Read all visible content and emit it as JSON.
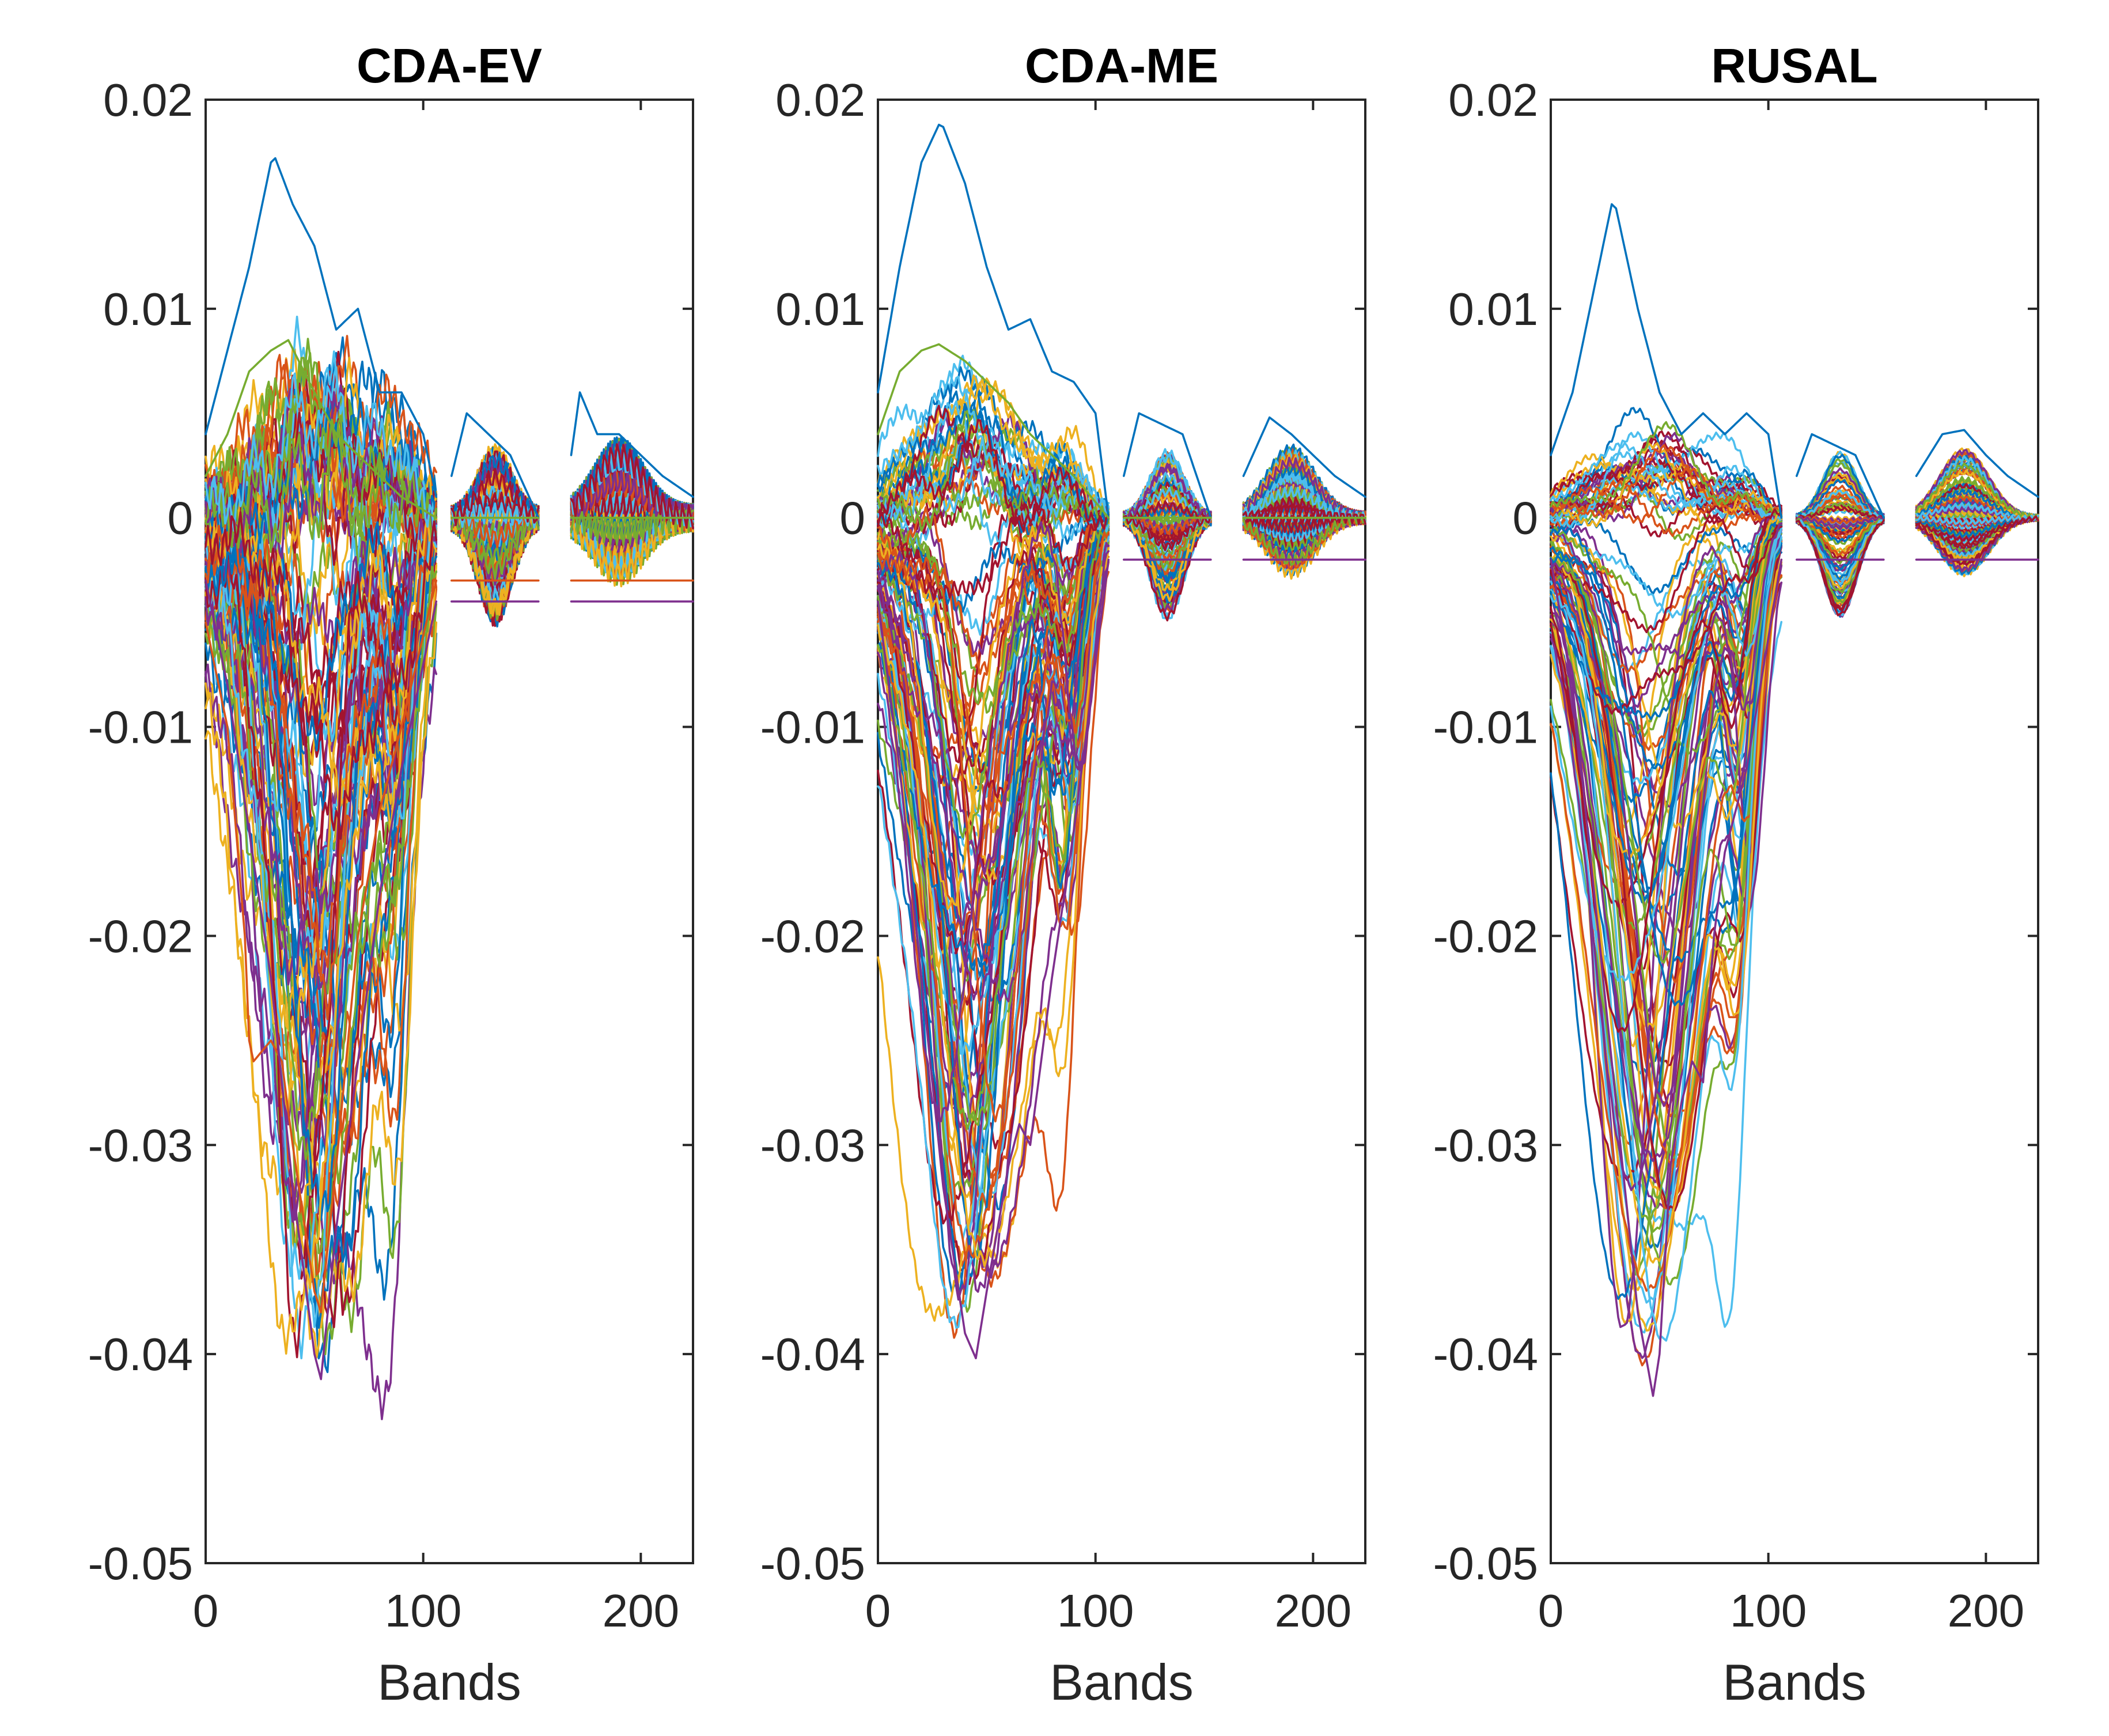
{
  "chart_data": [
    {
      "type": "line",
      "title": "CDA-EV",
      "xlabel": "Bands",
      "ylabel": "",
      "xlim": [
        0,
        224
      ],
      "ylim": [
        -0.05,
        0.02
      ],
      "xticks": [
        0,
        100,
        200
      ],
      "xtick_labels": [
        "0",
        "100",
        "200"
      ],
      "yticks": [
        0.02,
        0.01,
        0,
        -0.01,
        -0.02,
        -0.03,
        -0.04,
        -0.05
      ],
      "ytick_labels": [
        "0.02",
        "0.01",
        "0",
        "-0.01",
        "-0.02",
        "-0.03",
        "-0.04",
        "-0.05"
      ],
      "band_segments": [
        [
          0,
          106
        ],
        [
          113,
          153
        ],
        [
          168,
          224
        ]
      ],
      "series_count": 112,
      "representative_series": [
        {
          "name": "highest",
          "x": [
            0,
            10,
            20,
            30,
            32,
            40,
            50,
            60,
            70,
            80,
            90,
            100,
            106,
            113,
            120,
            130,
            140,
            153,
            168,
            172,
            180,
            190,
            200,
            210,
            224
          ],
          "values": [
            0.004,
            0.008,
            0.012,
            0.017,
            0.0172,
            0.015,
            0.013,
            0.009,
            0.01,
            0.006,
            0.006,
            0.004,
            0.001,
            0.002,
            0.005,
            0.004,
            0.003,
            0.0,
            0.003,
            0.006,
            0.004,
            0.004,
            0.003,
            0.002,
            0.001
          ]
        },
        {
          "name": "second-highest",
          "x": [
            0,
            10,
            20,
            30,
            38,
            50,
            60,
            70,
            80,
            90,
            106
          ],
          "values": [
            0.002,
            0.004,
            0.007,
            0.008,
            0.0085,
            0.006,
            0.004,
            0.003,
            0.002,
            0.001,
            0.0
          ]
        },
        {
          "name": "step-low",
          "x": [
            0,
            10,
            18,
            20,
            22,
            30,
            35,
            40,
            50,
            53,
            60,
            70,
            80,
            90,
            106
          ],
          "values": [
            -0.005,
            -0.01,
            -0.02,
            -0.025,
            -0.026,
            -0.025,
            -0.026,
            -0.03,
            -0.037,
            -0.038,
            -0.031,
            -0.02,
            -0.014,
            -0.01,
            -0.003
          ]
        },
        {
          "name": "deepest",
          "x": [
            0,
            10,
            20,
            30,
            40,
            50,
            53,
            60,
            70,
            80,
            90,
            106
          ],
          "values": [
            -0.003,
            -0.008,
            -0.015,
            -0.022,
            -0.032,
            -0.04,
            -0.0412,
            -0.034,
            -0.026,
            -0.018,
            -0.012,
            -0.004
          ]
        }
      ]
    },
    {
      "type": "line",
      "title": "CDA-ME",
      "xlabel": "Bands",
      "ylabel": "",
      "xlim": [
        0,
        224
      ],
      "ylim": [
        -0.05,
        0.02
      ],
      "xticks": [
        0,
        100,
        200
      ],
      "xtick_labels": [
        "0",
        "100",
        "200"
      ],
      "yticks": [
        0.02,
        0.01,
        0,
        -0.01,
        -0.02,
        -0.03,
        -0.04,
        -0.05
      ],
      "ytick_labels": [
        "0.02",
        "0.01",
        "0",
        "-0.01",
        "-0.02",
        "-0.03",
        "-0.04",
        "-0.05"
      ],
      "band_segments": [
        [
          0,
          106
        ],
        [
          113,
          153
        ],
        [
          168,
          224
        ]
      ],
      "series_count": 112,
      "representative_series": [
        {
          "name": "highest",
          "x": [
            0,
            10,
            20,
            28,
            30,
            40,
            50,
            60,
            70,
            80,
            90,
            100,
            106,
            113,
            120,
            130,
            140,
            153,
            168,
            180,
            190,
            200,
            210,
            224
          ],
          "values": [
            0.006,
            0.012,
            0.017,
            0.0188,
            0.0187,
            0.016,
            0.012,
            0.009,
            0.0095,
            0.007,
            0.0065,
            0.005,
            0.0,
            0.002,
            0.005,
            0.0045,
            0.004,
            0.0,
            0.002,
            0.0048,
            0.004,
            0.003,
            0.002,
            0.001
          ]
        },
        {
          "name": "second-highest",
          "x": [
            0,
            10,
            20,
            28,
            40,
            50,
            60,
            70,
            80,
            90,
            106
          ],
          "values": [
            0.004,
            0.007,
            0.008,
            0.0083,
            0.0075,
            0.0065,
            0.0055,
            0.004,
            0.003,
            0.002,
            0.0
          ]
        },
        {
          "name": "deepest",
          "x": [
            0,
            10,
            20,
            30,
            40,
            45,
            50,
            55,
            60,
            65,
            70,
            80,
            90,
            106
          ],
          "values": [
            -0.004,
            -0.012,
            -0.022,
            -0.032,
            -0.039,
            -0.0402,
            -0.037,
            -0.034,
            -0.031,
            -0.029,
            -0.03,
            -0.022,
            -0.015,
            -0.002
          ]
        }
      ]
    },
    {
      "type": "line",
      "title": "RUSAL",
      "xlabel": "Bands",
      "ylabel": "",
      "xlim": [
        0,
        224
      ],
      "ylim": [
        -0.05,
        0.02
      ],
      "xticks": [
        0,
        100,
        200
      ],
      "xtick_labels": [
        "0",
        "100",
        "200"
      ],
      "yticks": [
        0.02,
        0.01,
        0,
        -0.01,
        -0.02,
        -0.03,
        -0.04,
        -0.05
      ],
      "ytick_labels": [
        "0.02",
        "0.01",
        "0",
        "-0.01",
        "-0.02",
        "-0.03",
        "-0.04",
        "-0.05"
      ],
      "band_segments": [
        [
          0,
          106
        ],
        [
          113,
          153
        ],
        [
          168,
          224
        ]
      ],
      "series_count": 112,
      "representative_series": [
        {
          "name": "highest",
          "x": [
            0,
            10,
            20,
            28,
            30,
            40,
            50,
            60,
            70,
            80,
            90,
            100,
            106,
            113,
            120,
            130,
            140,
            153,
            168,
            180,
            190,
            200,
            210,
            224
          ],
          "values": [
            0.003,
            0.006,
            0.011,
            0.015,
            0.0148,
            0.01,
            0.006,
            0.004,
            0.005,
            0.004,
            0.005,
            0.004,
            0.0,
            0.002,
            0.004,
            0.0035,
            0.003,
            0.0,
            0.002,
            0.004,
            0.0042,
            0.003,
            0.002,
            0.001
          ]
        },
        {
          "name": "deepest",
          "x": [
            0,
            10,
            20,
            30,
            40,
            47,
            50,
            55,
            60,
            65,
            70,
            75,
            80,
            90,
            106
          ],
          "values": [
            -0.002,
            -0.008,
            -0.018,
            -0.028,
            -0.038,
            -0.042,
            -0.04,
            -0.031,
            -0.028,
            -0.026,
            -0.027,
            -0.02,
            -0.016,
            -0.012,
            -0.002
          ]
        }
      ]
    }
  ]
}
